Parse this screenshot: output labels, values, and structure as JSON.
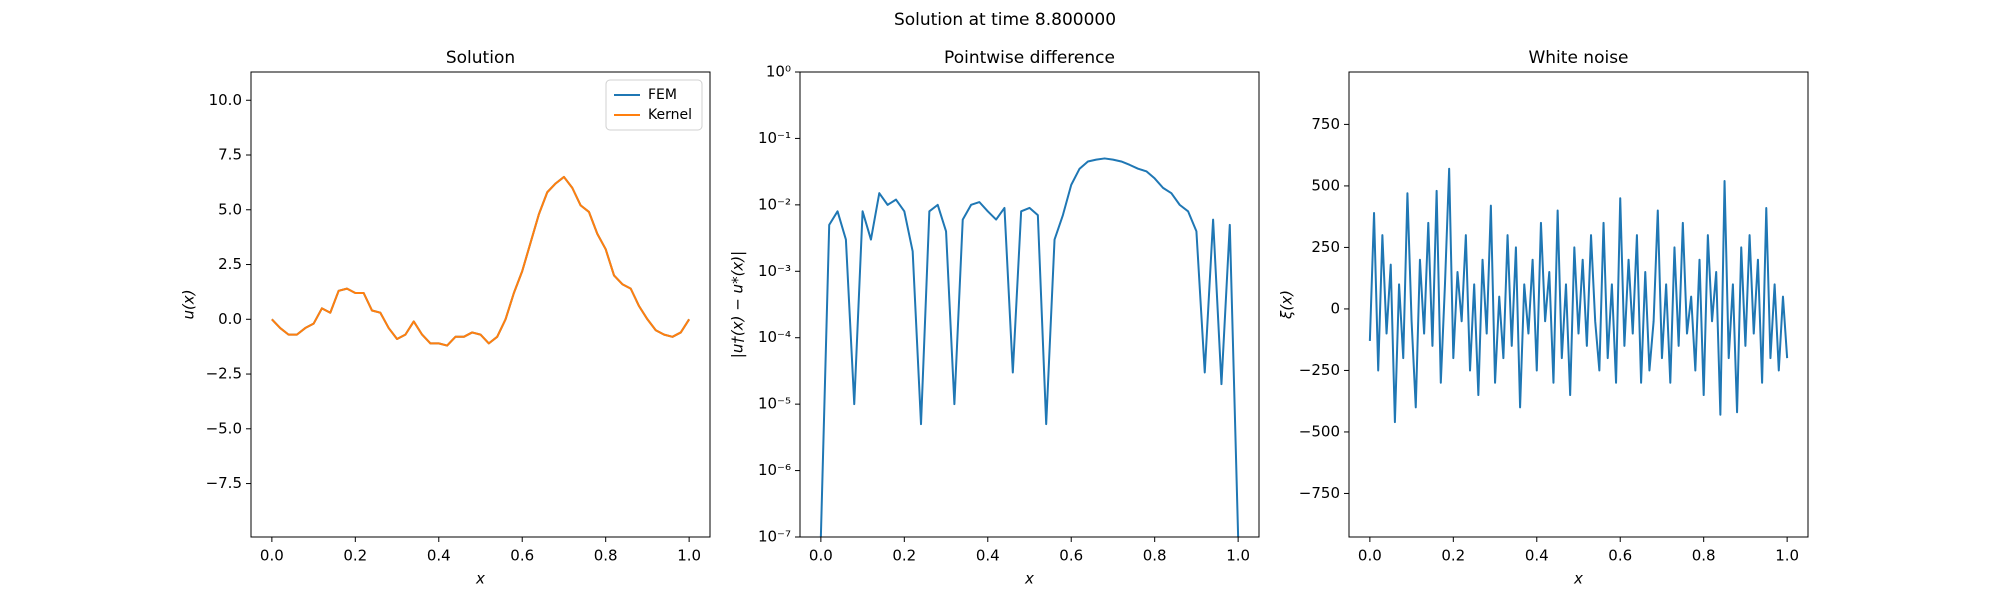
{
  "suptitle": "Solution at time 8.800000",
  "chart_data": [
    {
      "type": "line",
      "title": "Solution",
      "xlabel": "x",
      "ylabel": "u(x)",
      "legend": "upper right",
      "x": [
        0,
        0.02,
        0.04,
        0.06,
        0.08,
        0.1,
        0.12,
        0.14,
        0.16,
        0.18,
        0.2,
        0.22,
        0.24,
        0.26,
        0.28,
        0.3,
        0.32,
        0.34,
        0.36,
        0.38,
        0.4,
        0.42,
        0.44,
        0.46,
        0.48,
        0.5,
        0.52,
        0.54,
        0.56,
        0.58,
        0.6,
        0.62,
        0.64,
        0.66,
        0.68,
        0.7,
        0.72,
        0.74,
        0.76,
        0.78,
        0.8,
        0.82,
        0.84,
        0.86,
        0.88,
        0.9,
        0.92,
        0.94,
        0.96,
        0.98,
        1
      ],
      "series": [
        {
          "name": "FEM",
          "color": "#1f77b4",
          "values": [
            0,
            -0.4,
            -0.7,
            -0.7,
            -0.4,
            -0.2,
            0.5,
            0.3,
            1.3,
            1.4,
            1.2,
            1.2,
            0.4,
            0.3,
            -0.4,
            -0.9,
            -0.7,
            -0.1,
            -0.7,
            -1.1,
            -1.1,
            -1.2,
            -0.8,
            -0.8,
            -0.6,
            -0.7,
            -1.1,
            -0.8,
            0,
            1.2,
            2.2,
            3.5,
            4.8,
            5.8,
            6.2,
            6.5,
            6,
            5.2,
            4.9,
            3.9,
            3.2,
            2,
            1.6,
            1.4,
            0.6,
            0,
            -0.5,
            -0.7,
            -0.8,
            -0.6,
            0
          ]
        },
        {
          "name": "Kernel",
          "color": "#ff7f0e",
          "values": [
            0,
            -0.4,
            -0.7,
            -0.7,
            -0.4,
            -0.2,
            0.5,
            0.3,
            1.3,
            1.4,
            1.2,
            1.2,
            0.4,
            0.3,
            -0.4,
            -0.9,
            -0.7,
            -0.1,
            -0.7,
            -1.1,
            -1.1,
            -1.2,
            -0.8,
            -0.8,
            -0.6,
            -0.7,
            -1.1,
            -0.8,
            0,
            1.2,
            2.2,
            3.5,
            4.8,
            5.8,
            6.2,
            6.5,
            6,
            5.2,
            4.9,
            3.9,
            3.2,
            2,
            1.6,
            1.4,
            0.6,
            0,
            -0.5,
            -0.7,
            -0.8,
            -0.6,
            0
          ]
        }
      ],
      "xlim": [
        -0.05,
        1.05
      ],
      "xticks": [
        {
          "value": 0,
          "label": "0.0"
        },
        0.2,
        0.4,
        0.6,
        0.8,
        {
          "value": 1,
          "label": "1.0"
        }
      ],
      "ylim": [
        -9.94,
        11.29
      ],
      "yticks": [
        {
          "value": -7.5,
          "label": "−7.5"
        },
        {
          "value": -5,
          "label": "−5.0"
        },
        {
          "value": -2.5,
          "label": "−2.5"
        },
        {
          "value": 0,
          "label": "0.0"
        },
        2.5,
        {
          "value": 5,
          "label": "5.0"
        },
        7.5,
        {
          "value": 10,
          "label": "10.0"
        }
      ]
    },
    {
      "type": "line",
      "title": "Pointwise difference",
      "xlabel": "x",
      "ylabel": "|u†(x) − u*(x)|",
      "log_y": true,
      "x": [
        0,
        0.02,
        0.04,
        0.06,
        0.08,
        0.1,
        0.12,
        0.14,
        0.16,
        0.18,
        0.2,
        0.22,
        0.24,
        0.26,
        0.28,
        0.3,
        0.32,
        0.34,
        0.36,
        0.38,
        0.4,
        0.42,
        0.44,
        0.46,
        0.48,
        0.5,
        0.52,
        0.54,
        0.56,
        0.58,
        0.6,
        0.62,
        0.64,
        0.66,
        0.68,
        0.7,
        0.72,
        0.74,
        0.76,
        0.78,
        0.8,
        0.82,
        0.84,
        0.86,
        0.88,
        0.9,
        0.92,
        0.94,
        0.96,
        0.98,
        1
      ],
      "series": [
        {
          "color": "#1f77b4",
          "values": [
            1e-07,
            0.005,
            0.008,
            0.003,
            1e-05,
            0.008,
            0.003,
            0.015,
            0.01,
            0.012,
            0.008,
            0.002,
            5e-06,
            0.008,
            0.01,
            0.004,
            1e-05,
            0.006,
            0.01,
            0.011,
            0.008,
            0.006,
            0.009,
            3e-05,
            0.008,
            0.009,
            0.007,
            5e-06,
            0.003,
            0.007,
            0.02,
            0.035,
            0.045,
            0.048,
            0.05,
            0.048,
            0.045,
            0.04,
            0.035,
            0.032,
            0.025,
            0.018,
            0.015,
            0.01,
            0.008,
            0.004,
            3e-05,
            0.006,
            2e-05,
            0.005,
            1e-07
          ]
        }
      ],
      "xlim": [
        -0.05,
        1.05
      ],
      "xticks": [
        {
          "value": 0,
          "label": "0.0"
        },
        0.2,
        0.4,
        0.6,
        0.8,
        {
          "value": 1,
          "label": "1.0"
        }
      ],
      "ylim": [
        1e-07,
        1
      ],
      "yticks": [
        {
          "value": 1e-07,
          "label": "10⁻⁷"
        },
        {
          "value": 1e-06,
          "label": "10⁻⁶"
        },
        {
          "value": 1e-05,
          "label": "10⁻⁵"
        },
        {
          "value": 0.0001,
          "label": "10⁻⁴"
        },
        {
          "value": 0.001,
          "label": "10⁻³"
        },
        {
          "value": 0.01,
          "label": "10⁻²"
        },
        {
          "value": 0.1,
          "label": "10⁻¹"
        },
        {
          "value": 1,
          "label": "10⁰"
        }
      ]
    },
    {
      "type": "line",
      "title": "White noise",
      "xlabel": "x",
      "ylabel": "ξ(x)",
      "x": [
        0,
        0.01,
        0.02,
        0.03,
        0.04,
        0.05,
        0.06,
        0.07,
        0.08,
        0.09,
        0.1,
        0.11,
        0.12,
        0.13,
        0.14,
        0.15,
        0.16,
        0.17,
        0.18,
        0.19,
        0.2,
        0.21,
        0.22,
        0.23,
        0.24,
        0.25,
        0.26,
        0.27,
        0.28,
        0.29,
        0.3,
        0.31,
        0.32,
        0.33,
        0.34,
        0.35,
        0.36,
        0.37,
        0.38,
        0.39,
        0.4,
        0.41,
        0.42,
        0.43,
        0.44,
        0.45,
        0.46,
        0.47,
        0.48,
        0.49,
        0.5,
        0.51,
        0.52,
        0.53,
        0.54,
        0.55,
        0.56,
        0.57,
        0.58,
        0.59,
        0.6,
        0.61,
        0.62,
        0.63,
        0.64,
        0.65,
        0.66,
        0.67,
        0.68,
        0.69,
        0.7,
        0.71,
        0.72,
        0.73,
        0.74,
        0.75,
        0.76,
        0.77,
        0.78,
        0.79,
        0.8,
        0.81,
        0.82,
        0.83,
        0.84,
        0.85,
        0.86,
        0.87,
        0.88,
        0.89,
        0.9,
        0.91,
        0.92,
        0.93,
        0.94,
        0.95,
        0.96,
        0.97,
        0.98,
        0.99,
        1
      ],
      "series": [
        {
          "color": "#1f77b4",
          "values": [
            -130,
            390,
            -250,
            300,
            -100,
            180,
            -460,
            100,
            -200,
            470,
            -50,
            -400,
            200,
            -100,
            350,
            -150,
            480,
            -300,
            100,
            570,
            -200,
            150,
            -50,
            300,
            -250,
            100,
            -350,
            200,
            -100,
            420,
            -300,
            50,
            -200,
            300,
            -150,
            250,
            -400,
            100,
            -100,
            200,
            -250,
            350,
            -50,
            150,
            -300,
            400,
            -200,
            100,
            -350,
            250,
            -100,
            200,
            -150,
            300,
            -50,
            -250,
            350,
            -200,
            100,
            -300,
            450,
            -150,
            200,
            -100,
            300,
            -300,
            150,
            -250,
            -50,
            400,
            -200,
            100,
            -300,
            250,
            -150,
            350,
            -100,
            50,
            -250,
            200,
            -350,
            300,
            -50,
            150,
            -430,
            520,
            -200,
            100,
            -420,
            250,
            -150,
            300,
            -100,
            200,
            -300,
            410,
            -200,
            100,
            -250,
            50,
            -200
          ]
        }
      ],
      "xlim": [
        -0.05,
        1.05
      ],
      "xticks": [
        {
          "value": 0,
          "label": "0.0"
        },
        0.2,
        0.4,
        0.6,
        0.8,
        {
          "value": 1,
          "label": "1.0"
        }
      ],
      "ylim": [
        -927,
        963
      ],
      "yticks": [
        {
          "value": -750,
          "label": "−750"
        },
        {
          "value": -500,
          "label": "−500"
        },
        {
          "value": -250,
          "label": "−250"
        },
        0,
        250,
        500,
        750
      ]
    }
  ]
}
